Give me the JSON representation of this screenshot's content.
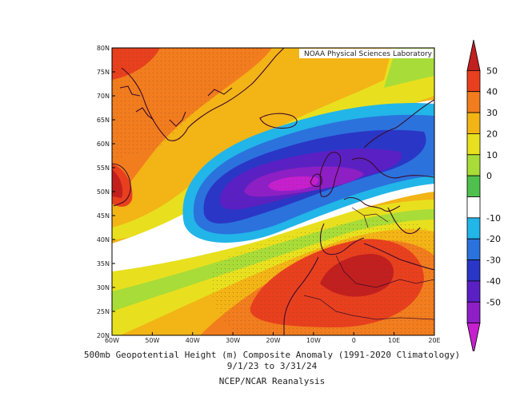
{
  "map": {
    "credit": "NOAA Physical Sciences Laboratory",
    "lat_labels": [
      "80N",
      "75N",
      "70N",
      "65N",
      "60N",
      "55N",
      "50N",
      "45N",
      "40N",
      "35N",
      "30N",
      "25N",
      "20N"
    ],
    "lon_labels": [
      "60W",
      "50W",
      "40W",
      "30W",
      "20W",
      "10W",
      "0",
      "10E",
      "20E"
    ]
  },
  "colorbar": {
    "levels": [
      50,
      40,
      30,
      20,
      10,
      0,
      -10,
      -20,
      -30,
      -40,
      -50
    ],
    "colors": [
      "#c21f1f",
      "#e8401e",
      "#f27d1e",
      "#f3b416",
      "#e8e01e",
      "#a8dc38",
      "#4fc04d",
      "#ffffff",
      "#22b5e8",
      "#2b72dd",
      "#2a36c6",
      "#5a20c4",
      "#8e1fc7",
      "#c61fce"
    ]
  },
  "titles": {
    "line1": "500mb Geopotential Height (m) Composite Anomaly (1991-2020 Climatology)",
    "line2": "9/1/23  to 3/31/24",
    "line3": "NCEP/NCAR Reanalysis"
  }
}
